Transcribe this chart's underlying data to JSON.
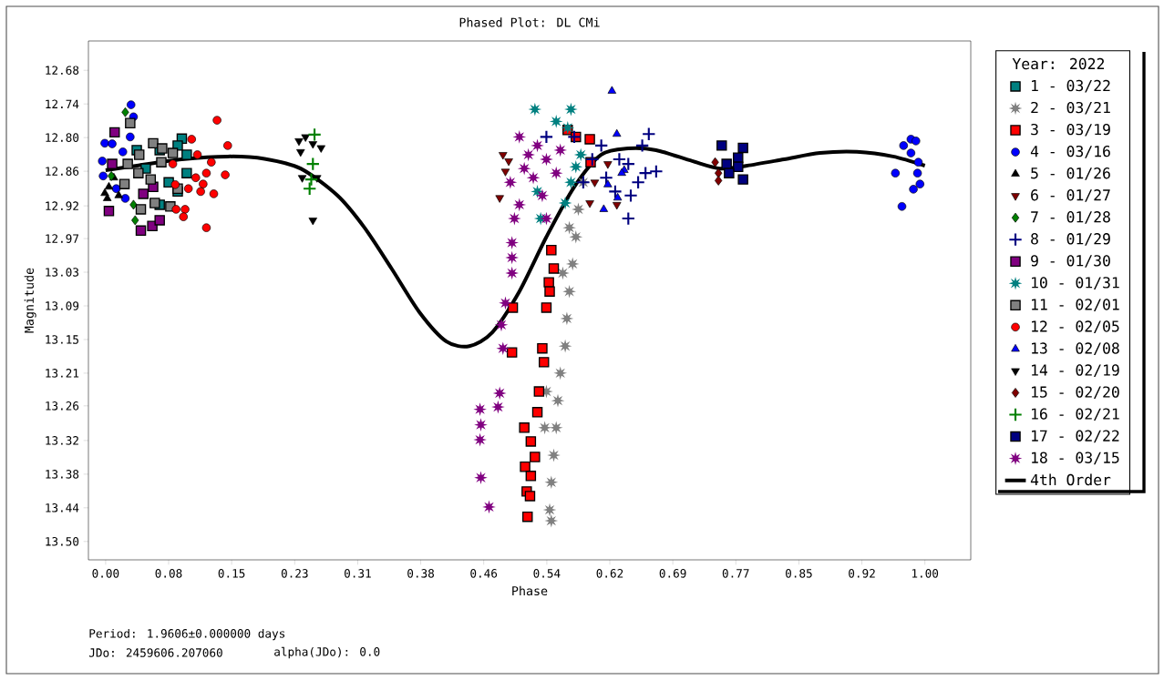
{
  "chart_data": {
    "type": "scatter",
    "title": "Phased Plot: DL CMi",
    "xlabel": "Phase",
    "ylabel": "Magnitude",
    "legend_title": "Year: 2022",
    "legend": "right",
    "xlim": [
      -0.021,
      1.056
    ],
    "ylim": [
      13.532,
      12.629
    ],
    "xticks": [
      {
        "value": 0,
        "label": "0.00"
      },
      {
        "value": 0.0769,
        "label": "0.08"
      },
      {
        "value": 0.1538,
        "label": "0.15"
      },
      {
        "value": 0.2308,
        "label": "0.23"
      },
      {
        "value": 0.3077,
        "label": "0.31"
      },
      {
        "value": 0.3846,
        "label": "0.38"
      },
      {
        "value": 0.4615,
        "label": "0.46"
      },
      {
        "value": 0.5385,
        "label": "0.54"
      },
      {
        "value": 0.6154,
        "label": "0.62"
      },
      {
        "value": 0.6923,
        "label": "0.69"
      },
      {
        "value": 0.7692,
        "label": "0.77"
      },
      {
        "value": 0.8462,
        "label": "0.85"
      },
      {
        "value": 0.9231,
        "label": "0.92"
      },
      {
        "value": 1,
        "label": "1.00"
      }
    ],
    "yticks": [
      {
        "value": 12.68,
        "label": "12.68"
      },
      {
        "value": 12.7386,
        "label": "12.74"
      },
      {
        "value": 12.7971,
        "label": "12.80"
      },
      {
        "value": 12.8557,
        "label": "12.86"
      },
      {
        "value": 12.916,
        "label": "12.92"
      },
      {
        "value": 12.9729,
        "label": "12.97"
      },
      {
        "value": 13.0314,
        "label": "13.03"
      },
      {
        "value": 13.09,
        "label": "13.09"
      },
      {
        "value": 13.1486,
        "label": "13.15"
      },
      {
        "value": 13.2071,
        "label": "13.21"
      },
      {
        "value": 13.264,
        "label": "13.26"
      },
      {
        "value": 13.3243,
        "label": "13.32"
      },
      {
        "value": 13.3829,
        "label": "13.38"
      },
      {
        "value": 13.4414,
        "label": "13.44"
      },
      {
        "value": 13.5,
        "label": "13.50"
      }
    ],
    "annotations": [
      "Period: 1.9606±0.000000 days",
      "JDo: 2459606.207060",
      "alpha(JDo): 0.0"
    ],
    "series": [
      {
        "name": "1 - 03/22",
        "color": "#008080",
        "marker": "square",
        "x": [
          0.038,
          0.066,
          0.093,
          0.099,
          0.077,
          0.088,
          0.066,
          0.099,
          0.049,
          0.088
        ],
        "values": [
          12.819,
          12.819,
          12.799,
          12.827,
          12.875,
          12.891,
          12.914,
          12.859,
          12.851,
          12.811
        ]
      },
      {
        "name": "2 - 03/21",
        "color": "#808080",
        "marker": "star",
        "x": [
          0.583,
          0.577,
          0.574,
          0.57,
          0.566,
          0.563,
          0.561,
          0.555,
          0.552,
          0.55,
          0.547,
          0.544,
          0.542,
          0.544,
          0.566,
          0.558,
          0.538,
          0.536
        ],
        "values": [
          12.875,
          12.922,
          12.97,
          13.017,
          13.065,
          13.112,
          13.16,
          13.207,
          13.255,
          13.302,
          13.35,
          13.397,
          13.445,
          13.464,
          12.954,
          13.033,
          13.239,
          13.302
        ]
      },
      {
        "name": "3 - 03/19",
        "color": "#ff0000",
        "marker": "square",
        "x": [
          0.544,
          0.547,
          0.541,
          0.542,
          0.538,
          0.533,
          0.535,
          0.529,
          0.527,
          0.511,
          0.519,
          0.524,
          0.512,
          0.519,
          0.514,
          0.518,
          0.515,
          0.497,
          0.496,
          0.564,
          0.591,
          0.592,
          0.574
        ],
        "values": [
          12.993,
          13.025,
          13.049,
          13.065,
          13.093,
          13.164,
          13.188,
          13.239,
          13.275,
          13.302,
          13.326,
          13.353,
          13.37,
          13.386,
          13.413,
          13.421,
          13.457,
          13.093,
          13.171,
          12.784,
          12.8,
          12.84,
          12.796
        ]
      },
      {
        "name": "4 - 03/16",
        "color": "#0000ff",
        "marker": "circle",
        "x": [
          0.031,
          0.034,
          0.03,
          -0.001,
          0.008,
          -0.004,
          -0.003,
          0.013,
          0.024,
          0.021,
          0.974,
          0.983,
          0.989,
          0.983,
          0.992,
          0.964,
          0.991,
          0.994,
          0.986,
          0.972
        ],
        "values": [
          12.74,
          12.761,
          12.796,
          12.807,
          12.808,
          12.838,
          12.864,
          12.886,
          12.903,
          12.822,
          12.811,
          12.8,
          12.803,
          12.824,
          12.84,
          12.859,
          12.859,
          12.878,
          12.887,
          12.917
        ]
      },
      {
        "name": "5 - 01/26",
        "color": "#000000",
        "marker": "triangle",
        "x": [
          -0.001,
          0.004,
          0.01,
          0.016,
          0.002
        ],
        "values": [
          12.894,
          12.883,
          12.867,
          12.898,
          12.903
        ]
      },
      {
        "name": "6 - 01/27",
        "color": "#800000",
        "marker": "triangle_down",
        "x": [
          0.485,
          0.492,
          0.488,
          0.481,
          0.624,
          0.591,
          0.613,
          0.597
        ],
        "values": [
          12.827,
          12.838,
          12.856,
          12.902,
          12.914,
          12.911,
          12.843,
          12.875
        ]
      },
      {
        "name": "7 - 01/28",
        "color": "#008000",
        "marker": "diamond",
        "x": [
          0.024,
          0.036,
          0.034,
          0.007
        ],
        "values": [
          12.753,
          12.941,
          12.914,
          12.864
        ]
      },
      {
        "name": "8 - 01/29",
        "color": "#000080",
        "marker": "cross",
        "x": [
          0.663,
          0.655,
          0.638,
          0.672,
          0.659,
          0.627,
          0.611,
          0.641,
          0.638,
          0.594,
          0.572,
          0.605,
          0.65,
          0.583,
          0.538,
          0.622
        ],
        "values": [
          12.791,
          12.811,
          12.843,
          12.856,
          12.859,
          12.835,
          12.867,
          12.898,
          12.938,
          12.835,
          12.796,
          12.811,
          12.875,
          12.875,
          12.796,
          12.891
        ]
      },
      {
        "name": "9 - 01/30",
        "color": "#800080",
        "marker": "square",
        "x": [
          0.011,
          0.008,
          0.004,
          0.043,
          0.057,
          0.066,
          0.058,
          0.046
        ],
        "values": [
          12.788,
          12.843,
          12.925,
          12.959,
          12.951,
          12.941,
          12.883,
          12.895
        ]
      },
      {
        "name": "10 - 01/31",
        "color": "#008080",
        "marker": "star",
        "x": [
          0.524,
          0.568,
          0.55,
          0.564,
          0.574,
          0.568,
          0.527,
          0.531,
          0.561,
          0.58
        ],
        "values": [
          12.748,
          12.748,
          12.769,
          12.78,
          12.848,
          12.875,
          12.891,
          12.938,
          12.911,
          12.827
        ]
      },
      {
        "name": "11 - 02/01",
        "color": "#808080",
        "marker": "square",
        "x": [
          0.03,
          0.058,
          0.069,
          0.082,
          0.041,
          0.027,
          0.068,
          0.04,
          0.023,
          0.06,
          0.043,
          0.079,
          0.088,
          0.055
        ],
        "values": [
          12.772,
          12.807,
          12.816,
          12.824,
          12.827,
          12.843,
          12.84,
          12.859,
          12.878,
          12.911,
          12.922,
          12.917,
          12.886,
          12.87
        ]
      },
      {
        "name": "12 - 02/05",
        "color": "#ff0000",
        "marker": "circle",
        "x": [
          0.136,
          0.149,
          0.105,
          0.112,
          0.129,
          0.082,
          0.146,
          0.123,
          0.11,
          0.119,
          0.085,
          0.101,
          0.116,
          0.132,
          0.086,
          0.097,
          0.095,
          0.123
        ],
        "values": [
          12.767,
          12.811,
          12.8,
          12.827,
          12.84,
          12.843,
          12.862,
          12.859,
          12.867,
          12.878,
          12.879,
          12.886,
          12.891,
          12.895,
          12.922,
          12.922,
          12.935,
          12.954
        ]
      },
      {
        "name": "13 - 02/08",
        "color": "#0000ff",
        "marker": "triangle",
        "x": [
          0.618,
          0.624,
          0.633,
          0.613,
          0.625,
          0.608,
          0.63
        ],
        "values": [
          12.716,
          12.791,
          12.854,
          12.879,
          12.902,
          12.922,
          12.859
        ]
      },
      {
        "name": "14 - 02/19",
        "color": "#000000",
        "marker": "triangle_down",
        "x": [
          0.236,
          0.244,
          0.253,
          0.263,
          0.238,
          0.24,
          0.258,
          0.253
        ],
        "values": [
          12.803,
          12.796,
          12.808,
          12.815,
          12.822,
          12.867,
          12.867,
          12.941
        ]
      },
      {
        "name": "15 - 02/20",
        "color": "#800000",
        "marker": "diamond",
        "x": [
          0.744,
          0.748,
          0.748
        ],
        "values": [
          12.84,
          12.859,
          12.872
        ]
      },
      {
        "name": "16 - 02/21",
        "color": "#008000",
        "marker": "cross",
        "x": [
          0.255,
          0.253,
          0.251,
          0.249
        ],
        "values": [
          12.792,
          12.843,
          12.87,
          12.886
        ]
      },
      {
        "name": "17 - 02/22",
        "color": "#000080",
        "marker": "square",
        "x": [
          0.752,
          0.778,
          0.772,
          0.758,
          0.772,
          0.778,
          0.761
        ],
        "values": [
          12.811,
          12.815,
          12.832,
          12.843,
          12.848,
          12.87,
          12.859
        ]
      },
      {
        "name": "18 - 03/15",
        "color": "#800080",
        "marker": "star",
        "x": [
          0.496,
          0.496,
          0.496,
          0.488,
          0.483,
          0.485,
          0.481,
          0.479,
          0.457,
          0.458,
          0.457,
          0.458,
          0.468,
          0.505,
          0.527,
          0.538,
          0.511,
          0.55,
          0.494,
          0.522,
          0.533,
          0.505,
          0.538,
          0.499,
          0.516,
          0.555
        ],
        "values": [
          12.98,
          13.006,
          13.033,
          13.085,
          13.123,
          13.164,
          13.242,
          13.266,
          13.27,
          13.297,
          13.323,
          13.389,
          13.44,
          12.796,
          12.811,
          12.835,
          12.851,
          12.859,
          12.875,
          12.867,
          12.898,
          12.914,
          12.938,
          12.938,
          12.827,
          12.819
        ]
      },
      {
        "name": "4th Order",
        "type": "line",
        "color": "#000000",
        "marker": "none",
        "line_style": "solid",
        "x": [
          0,
          0.038,
          0.093,
          0.149,
          0.194,
          0.238,
          0.283,
          0.316,
          0.349,
          0.383,
          0.416,
          0.444,
          0.472,
          0.505,
          0.538,
          0.572,
          0.605,
          0.638,
          0.672,
          0.716,
          0.75,
          0.783,
          0.828,
          0.872,
          0.917,
          0.961,
          1.0
        ],
        "values": [
          12.854,
          12.846,
          12.835,
          12.83,
          12.834,
          12.851,
          12.898,
          12.954,
          13.025,
          13.101,
          13.152,
          13.16,
          13.136,
          13.065,
          12.97,
          12.883,
          12.827,
          12.816,
          12.819,
          12.838,
          12.851,
          12.846,
          12.835,
          12.824,
          12.822,
          12.83,
          12.846
        ]
      }
    ]
  }
}
